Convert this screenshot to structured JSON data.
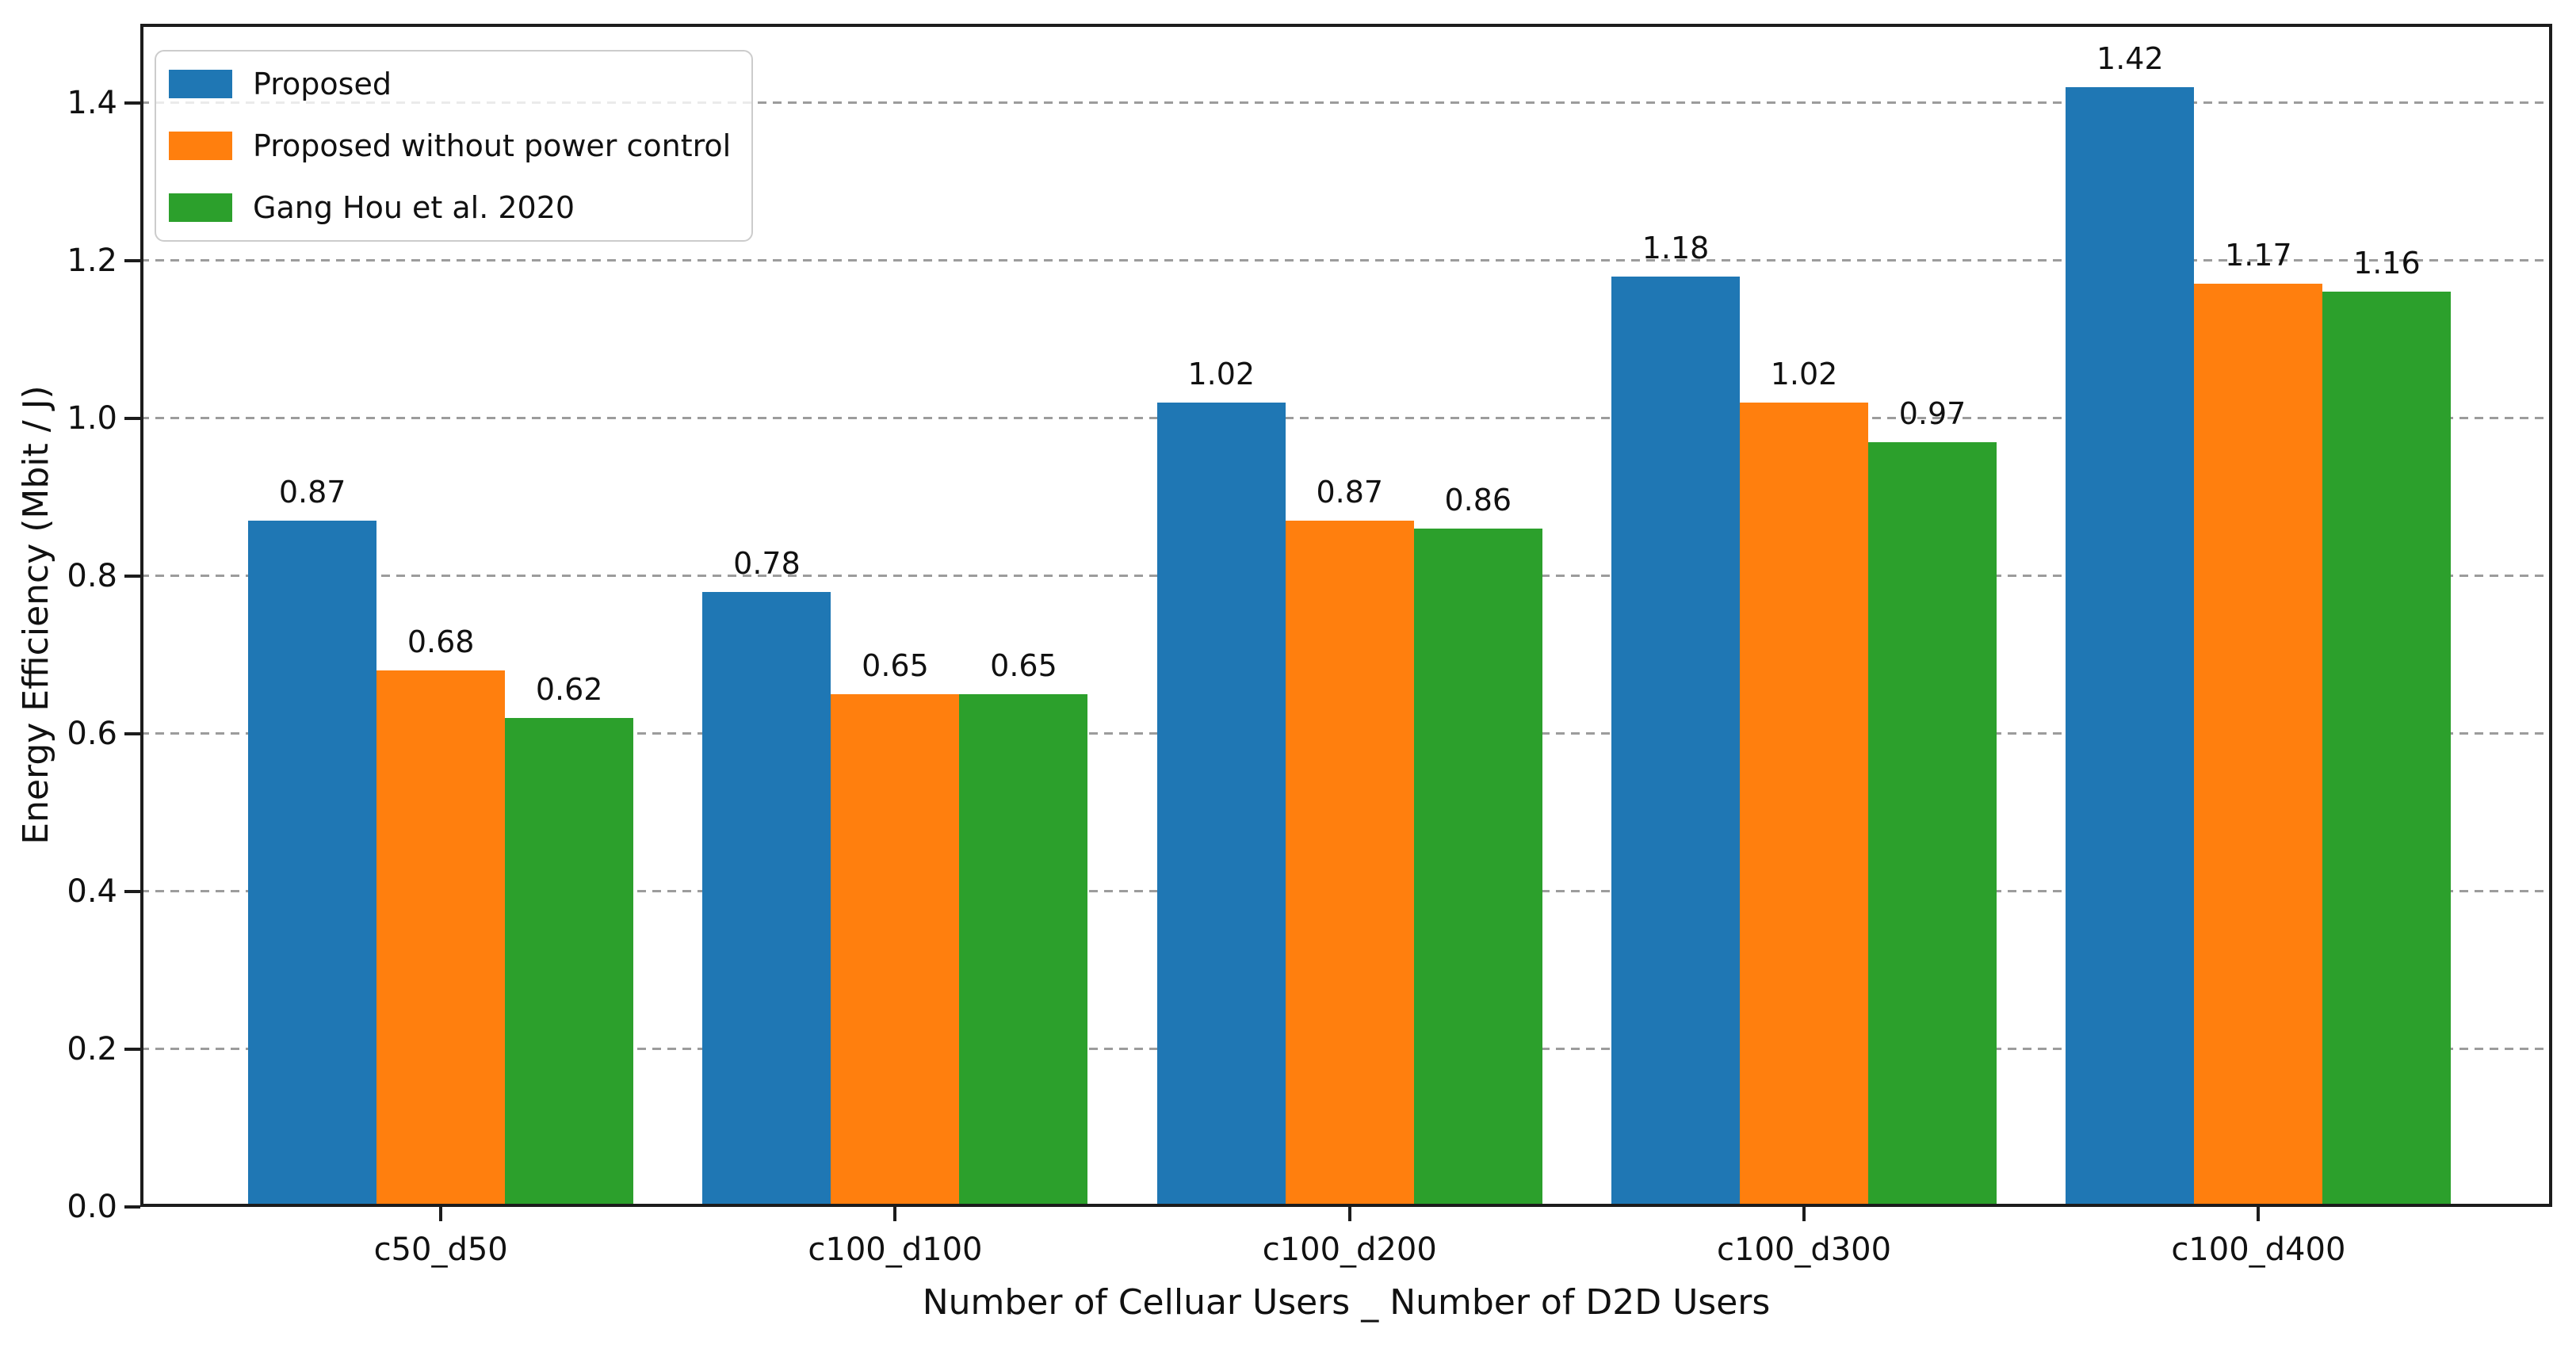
{
  "chart_data": {
    "type": "bar",
    "title": "",
    "xlabel": "Number of Celluar Users _ Number of D2D Users",
    "ylabel": "Energy Efficiency (Mbit / J)",
    "categories": [
      "c50_d50",
      "c100_d100",
      "c100_d200",
      "c100_d300",
      "c100_d400"
    ],
    "series": [
      {
        "name": "Proposed",
        "color": "#1f77b4",
        "values": [
          0.87,
          0.78,
          1.02,
          1.18,
          1.42
        ],
        "value_labels": [
          "0.87",
          "0.78",
          "1.02",
          "1.18",
          "1.42"
        ]
      },
      {
        "name": "Proposed without power control",
        "color": "#ff7f0e",
        "values": [
          0.68,
          0.65,
          0.87,
          1.02,
          1.17
        ],
        "value_labels": [
          "0.68",
          "0.65",
          "0.87",
          "1.02",
          "1.17"
        ]
      },
      {
        "name": "Gang Hou et al. 2020",
        "color": "#2ca02c",
        "values": [
          0.62,
          0.65,
          0.86,
          0.97,
          1.16
        ],
        "value_labels": [
          "0.62",
          "0.65",
          "0.86",
          "0.97",
          "1.16"
        ]
      }
    ],
    "yticks": [
      0.0,
      0.2,
      0.4,
      0.6,
      0.8,
      1.0,
      1.2,
      1.4
    ],
    "ytick_labels": [
      "0.0",
      "0.2",
      "0.4",
      "0.6",
      "0.8",
      "1.0",
      "1.2",
      "1.4"
    ],
    "ylim": [
      0,
      1.5
    ],
    "grid": "horizontal-dashed",
    "legend_position": "upper-left",
    "colors": {
      "background": "#ffffff",
      "spine": "#1c1c1c",
      "grid": "#9c9c9c",
      "text": "#111111",
      "legend_border": "#cccccc"
    }
  }
}
